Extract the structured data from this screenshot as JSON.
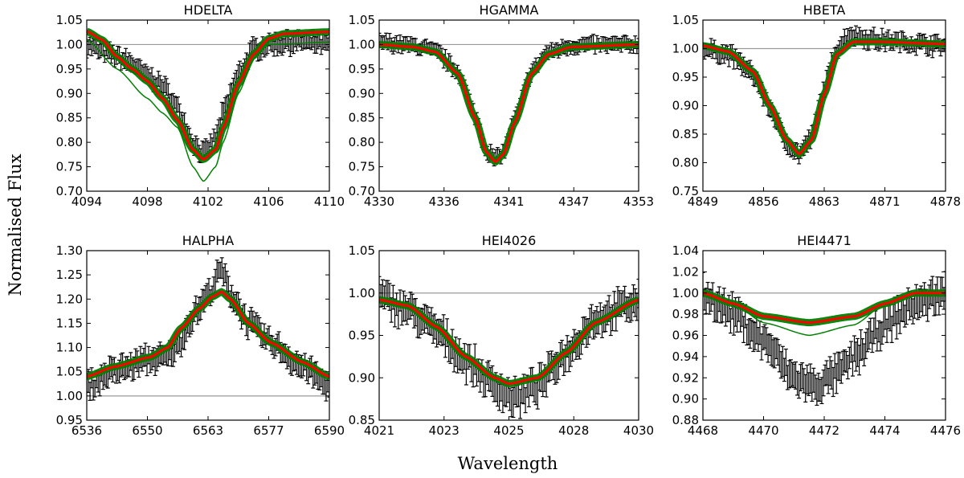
{
  "figure": {
    "ylabel": "Normalised Flux",
    "xlabel": "Wavelength"
  },
  "colors": {
    "observed": "#000000",
    "model_ensemble": "#008000",
    "best_fit": "#ff0000",
    "continuum": "#999999"
  },
  "chart_data": [
    {
      "type": "line",
      "title": "HDELTA",
      "xlim": [
        4094,
        4110
      ],
      "ylim": [
        0.7,
        1.05
      ],
      "xticks": [
        "4094",
        "4098",
        "4102",
        "4106",
        "4110"
      ],
      "yticks": [
        "0.70",
        "0.75",
        "0.80",
        "0.85",
        "0.90",
        "0.95",
        "1.00",
        "1.05"
      ],
      "continuum": 1.0,
      "error": 0.015,
      "best_fit": [
        [
          4094,
          1.027
        ],
        [
          4095,
          1.01
        ],
        [
          4096,
          0.975
        ],
        [
          4097,
          0.95
        ],
        [
          4098,
          0.925
        ],
        [
          4099,
          0.89
        ],
        [
          4100,
          0.845
        ],
        [
          4101,
          0.785
        ],
        [
          4101.7,
          0.765
        ],
        [
          4102.5,
          0.785
        ],
        [
          4103,
          0.83
        ],
        [
          4104,
          0.92
        ],
        [
          4105,
          0.98
        ],
        [
          4106,
          1.012
        ],
        [
          4107,
          1.022
        ],
        [
          4110,
          1.026
        ]
      ],
      "observed": [
        [
          4094,
          1.0
        ],
        [
          4095,
          0.985
        ],
        [
          4096,
          0.975
        ],
        [
          4097,
          0.96
        ],
        [
          4098,
          0.935
        ],
        [
          4099,
          0.915
        ],
        [
          4100,
          0.87
        ],
        [
          4101,
          0.8
        ],
        [
          4101.7,
          0.775
        ],
        [
          4102.5,
          0.81
        ],
        [
          4103,
          0.86
        ],
        [
          4104,
          0.94
        ],
        [
          4105,
          0.99
        ],
        [
          4106,
          1.0
        ],
        [
          4108,
          1.005
        ],
        [
          4110,
          1.0
        ]
      ],
      "ensemble_outlier": [
        [
          4094,
          1.01
        ],
        [
          4096,
          0.95
        ],
        [
          4098,
          0.89
        ],
        [
          4099,
          0.86
        ],
        [
          4100,
          0.83
        ],
        [
          4101,
          0.75
        ],
        [
          4101.7,
          0.72
        ],
        [
          4102.5,
          0.75
        ],
        [
          4103,
          0.8
        ],
        [
          4104,
          0.9
        ],
        [
          4105,
          0.97
        ],
        [
          4106,
          1.0
        ],
        [
          4110,
          1.005
        ]
      ]
    },
    {
      "type": "line",
      "title": "HGAMMA",
      "xlim": [
        4330,
        4353
      ],
      "ylim": [
        0.7,
        1.05
      ],
      "xticks": [
        "4330",
        "4336",
        "4341",
        "4347",
        "4353"
      ],
      "yticks": [
        "0.70",
        "0.75",
        "0.80",
        "0.85",
        "0.90",
        "0.95",
        "1.00",
        "1.05"
      ],
      "continuum": 1.0,
      "error": 0.012,
      "best_fit": [
        [
          4330,
          1.0
        ],
        [
          4333,
          0.995
        ],
        [
          4335,
          0.985
        ],
        [
          4337,
          0.94
        ],
        [
          4338.5,
          0.85
        ],
        [
          4339.5,
          0.78
        ],
        [
          4340.3,
          0.76
        ],
        [
          4341,
          0.775
        ],
        [
          4342,
          0.84
        ],
        [
          4343.5,
          0.94
        ],
        [
          4345,
          0.98
        ],
        [
          4347,
          0.995
        ],
        [
          4353,
          1.0
        ]
      ],
      "observed": [
        [
          4330,
          1.005
        ],
        [
          4333,
          0.998
        ],
        [
          4335,
          0.985
        ],
        [
          4337,
          0.945
        ],
        [
          4338.5,
          0.855
        ],
        [
          4339.5,
          0.785
        ],
        [
          4340.3,
          0.765
        ],
        [
          4341,
          0.78
        ],
        [
          4342,
          0.845
        ],
        [
          4343.5,
          0.945
        ],
        [
          4345,
          0.985
        ],
        [
          4347,
          0.998
        ],
        [
          4353,
          1.0
        ]
      ]
    },
    {
      "type": "line",
      "title": "HBETA",
      "xlim": [
        4849,
        4878
      ],
      "ylim": [
        0.75,
        1.05
      ],
      "xticks": [
        "4849",
        "4856",
        "4863",
        "4871",
        "4878"
      ],
      "yticks": [
        "0.75",
        "0.80",
        "0.85",
        "0.90",
        "0.95",
        "1.00",
        "1.05"
      ],
      "continuum": 1.0,
      "error": 0.012,
      "best_fit": [
        [
          4849,
          1.005
        ],
        [
          4852,
          0.995
        ],
        [
          4855,
          0.96
        ],
        [
          4857,
          0.9
        ],
        [
          4859,
          0.84
        ],
        [
          4860.5,
          0.815
        ],
        [
          4862,
          0.84
        ],
        [
          4863.5,
          0.92
        ],
        [
          4865,
          0.99
        ],
        [
          4867,
          1.012
        ],
        [
          4870,
          1.012
        ],
        [
          4878,
          1.008
        ]
      ],
      "observed": [
        [
          4849,
          1.0
        ],
        [
          4852,
          0.99
        ],
        [
          4855,
          0.955
        ],
        [
          4857,
          0.895
        ],
        [
          4859,
          0.835
        ],
        [
          4860.5,
          0.815
        ],
        [
          4862,
          0.845
        ],
        [
          4863.5,
          0.93
        ],
        [
          4865,
          1.0
        ],
        [
          4866.5,
          1.025
        ],
        [
          4870,
          1.015
        ],
        [
          4878,
          1.005
        ]
      ]
    },
    {
      "type": "line",
      "title": "HALPHA",
      "xlim": [
        6536,
        6590
      ],
      "ylim": [
        0.95,
        1.3
      ],
      "xticks": [
        "6536",
        "6550",
        "6563",
        "6577",
        "6590"
      ],
      "yticks": [
        "0.95",
        "1.00",
        "1.05",
        "1.10",
        "1.15",
        "1.20",
        "1.25",
        "1.30"
      ],
      "continuum": 1.0,
      "error": 0.02,
      "best_fit": [
        [
          6536,
          1.04
        ],
        [
          6542,
          1.06
        ],
        [
          6550,
          1.08
        ],
        [
          6554,
          1.1
        ],
        [
          6557,
          1.14
        ],
        [
          6561,
          1.18
        ],
        [
          6564,
          1.205
        ],
        [
          6566,
          1.215
        ],
        [
          6568,
          1.2
        ],
        [
          6572,
          1.15
        ],
        [
          6577,
          1.11
        ],
        [
          6584,
          1.07
        ],
        [
          6590,
          1.04
        ]
      ],
      "observed": [
        [
          6536,
          1.02
        ],
        [
          6542,
          1.05
        ],
        [
          6550,
          1.075
        ],
        [
          6554,
          1.08
        ],
        [
          6556,
          1.1
        ],
        [
          6560,
          1.17
        ],
        [
          6563,
          1.21
        ],
        [
          6566,
          1.26
        ],
        [
          6568,
          1.21
        ],
        [
          6572,
          1.15
        ],
        [
          6577,
          1.11
        ],
        [
          6584,
          1.06
        ],
        [
          6590,
          1.02
        ]
      ]
    },
    {
      "type": "line",
      "title": "HEI4026",
      "xlim": [
        4021,
        4030
      ],
      "ylim": [
        0.85,
        1.05
      ],
      "xticks": [
        "4021",
        "4023",
        "4025",
        "4028",
        "4030"
      ],
      "yticks": [
        "0.85",
        "0.90",
        "0.95",
        "1.00",
        "1.05"
      ],
      "continuum": 1.0,
      "error": 0.015,
      "best_fit": [
        [
          4021,
          0.992
        ],
        [
          4022,
          0.985
        ],
        [
          4023,
          0.96
        ],
        [
          4024,
          0.925
        ],
        [
          4025,
          0.9
        ],
        [
          4025.5,
          0.893
        ],
        [
          4026.5,
          0.9
        ],
        [
          4027.5,
          0.93
        ],
        [
          4028.5,
          0.965
        ],
        [
          4030,
          0.992
        ]
      ],
      "observed": [
        [
          4021,
          0.995
        ],
        [
          4022,
          0.98
        ],
        [
          4023,
          0.955
        ],
        [
          4024,
          0.92
        ],
        [
          4025,
          0.89
        ],
        [
          4025.7,
          0.875
        ],
        [
          4026.5,
          0.89
        ],
        [
          4027.5,
          0.93
        ],
        [
          4028.5,
          0.97
        ],
        [
          4030,
          0.99
        ]
      ]
    },
    {
      "type": "line",
      "title": "HEI4471",
      "xlim": [
        4468,
        4476
      ],
      "ylim": [
        0.88,
        1.04
      ],
      "xticks": [
        "4468",
        "4470",
        "4472",
        "4474",
        "4476"
      ],
      "yticks": [
        "0.88",
        "0.90",
        "0.92",
        "0.94",
        "0.96",
        "0.98",
        "1.00",
        "1.02",
        "1.04"
      ],
      "continuum": 1.0,
      "error": 0.012,
      "best_fit": [
        [
          4468,
          1.0
        ],
        [
          4469,
          0.99
        ],
        [
          4470,
          0.978
        ],
        [
          4471.5,
          0.972
        ],
        [
          4473,
          0.978
        ],
        [
          4474,
          0.99
        ],
        [
          4475,
          1.0
        ],
        [
          4476,
          1.0
        ]
      ],
      "observed": [
        [
          4468,
          1.0
        ],
        [
          4469,
          0.98
        ],
        [
          4470,
          0.955
        ],
        [
          4471,
          0.92
        ],
        [
          4471.7,
          0.912
        ],
        [
          4472.5,
          0.925
        ],
        [
          4473,
          0.94
        ],
        [
          4474,
          0.97
        ],
        [
          4475,
          0.99
        ],
        [
          4476,
          1.0
        ]
      ],
      "ensemble_outlier": [
        [
          4468,
          1.0
        ],
        [
          4469,
          0.99
        ],
        [
          4470,
          0.972
        ],
        [
          4471.5,
          0.96
        ],
        [
          4473,
          0.97
        ],
        [
          4474,
          0.99
        ],
        [
          4475,
          1.0
        ],
        [
          4476,
          1.0
        ]
      ]
    }
  ]
}
